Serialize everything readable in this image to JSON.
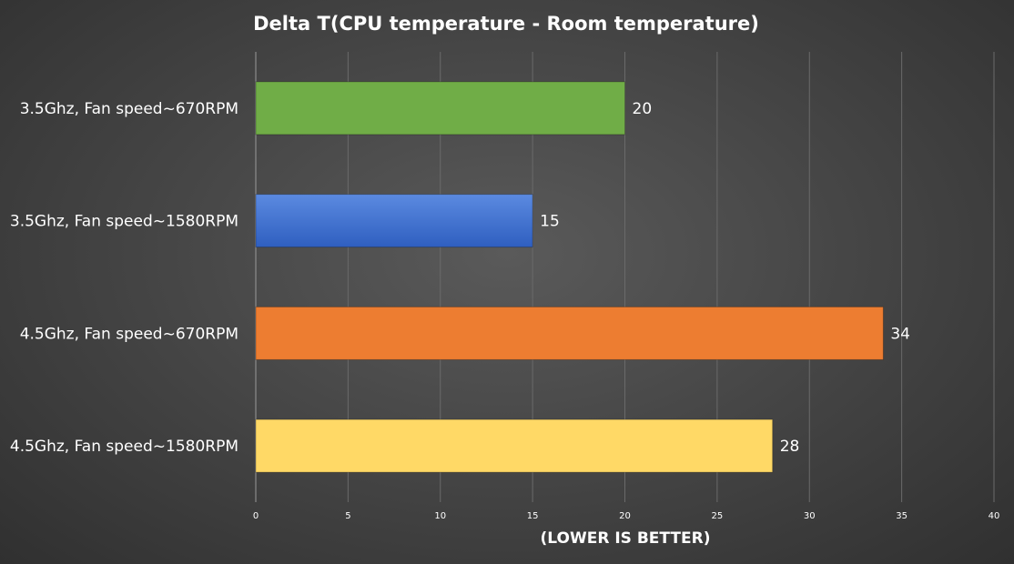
{
  "chart_data": {
    "type": "bar",
    "orientation": "horizontal",
    "title": "Delta T(CPU temperature  - Room temperature)",
    "xlabel": "(LOWER IS BETTER)",
    "ylabel": "",
    "categories": [
      "3.5Ghz, Fan speed~670RPM",
      "3.5Ghz, Fan speed~1580RPM",
      "4.5Ghz, Fan speed~670RPM",
      "4.5Ghz, Fan speed~1580RPM"
    ],
    "values": [
      20,
      15,
      34,
      28
    ],
    "colors": [
      "#70ad47",
      "#4472c4",
      "#ed7d31",
      "#ffd966"
    ],
    "xlim": [
      0,
      40
    ],
    "xticks": [
      0,
      5,
      10,
      15,
      20,
      25,
      30,
      35,
      40
    ],
    "grid": true,
    "legend": "none"
  }
}
